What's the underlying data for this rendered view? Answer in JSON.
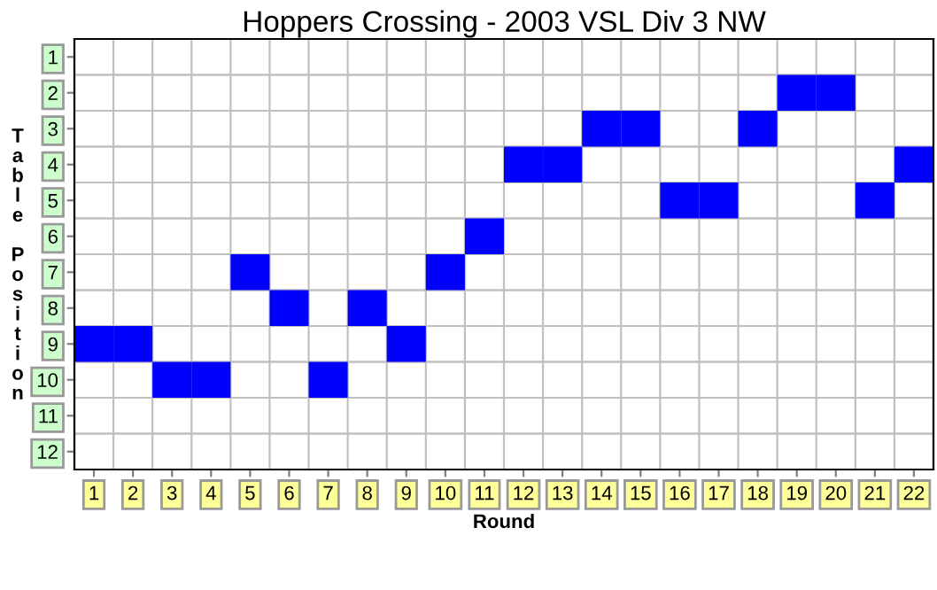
{
  "chart_data": {
    "type": "scatter",
    "title": "Hoppers Crossing - 2003 VSL Div 3 NW",
    "xlabel": "Round",
    "ylabel": "Table Position",
    "categories": [
      "1",
      "2",
      "3",
      "4",
      "5",
      "6",
      "7",
      "8",
      "9",
      "10",
      "11",
      "12",
      "13",
      "14",
      "15",
      "16",
      "17",
      "18",
      "19",
      "20",
      "21",
      "22"
    ],
    "series": [
      {
        "color": "#0000ff",
        "values": [
          9,
          9,
          10,
          10,
          7,
          8,
          10,
          8,
          9,
          7,
          6,
          4,
          4,
          3,
          3,
          5,
          5,
          3,
          2,
          2,
          5,
          4
        ]
      }
    ],
    "ylim": [
      12.5,
      0.5
    ],
    "yticks": [
      1,
      2,
      3,
      4,
      5,
      6,
      7,
      8,
      9,
      10,
      11,
      12
    ],
    "marker": "square",
    "grid": true,
    "legend": false
  }
}
